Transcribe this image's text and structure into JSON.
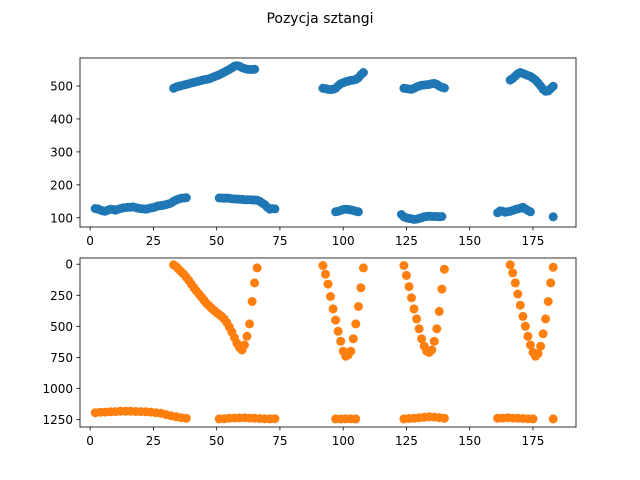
{
  "figure": {
    "title": "Pozycja sztangi"
  },
  "chart_data": [
    {
      "type": "scatter",
      "title": "Pozycja sztangi",
      "xlabel": "",
      "ylabel": "",
      "xlim": [
        -4,
        192
      ],
      "ylim": [
        72,
        585
      ],
      "xticks": [
        0,
        25,
        50,
        75,
        100,
        125,
        150,
        175
      ],
      "yticks": [
        100,
        200,
        300,
        400,
        500
      ],
      "grid": false,
      "color": "#1f77b4",
      "points": [
        [
          2,
          128
        ],
        [
          3,
          127
        ],
        [
          4,
          124
        ],
        [
          5,
          121
        ],
        [
          6,
          120
        ],
        [
          7,
          123
        ],
        [
          8,
          126
        ],
        [
          9,
          125
        ],
        [
          10,
          123
        ],
        [
          11,
          126
        ],
        [
          12,
          128
        ],
        [
          13,
          130
        ],
        [
          14,
          131
        ],
        [
          15,
          132
        ],
        [
          16,
          132
        ],
        [
          17,
          133
        ],
        [
          18,
          131
        ],
        [
          19,
          129
        ],
        [
          20,
          128
        ],
        [
          21,
          127
        ],
        [
          22,
          126
        ],
        [
          23,
          128
        ],
        [
          24,
          130
        ],
        [
          25,
          131
        ],
        [
          26,
          134
        ],
        [
          27,
          136
        ],
        [
          28,
          137
        ],
        [
          29,
          138
        ],
        [
          30,
          140
        ],
        [
          31,
          142
        ],
        [
          32,
          145
        ],
        [
          33,
          150
        ],
        [
          34,
          154
        ],
        [
          35,
          157
        ],
        [
          36,
          159
        ],
        [
          37,
          160
        ],
        [
          38,
          161
        ],
        [
          33,
          493
        ],
        [
          34,
          497
        ],
        [
          35,
          499
        ],
        [
          36,
          501
        ],
        [
          37,
          503
        ],
        [
          38,
          505
        ],
        [
          39,
          507
        ],
        [
          40,
          509
        ],
        [
          41,
          511
        ],
        [
          42,
          513
        ],
        [
          43,
          515
        ],
        [
          44,
          517
        ],
        [
          45,
          519
        ],
        [
          46,
          520
        ],
        [
          47,
          522
        ],
        [
          48,
          525
        ],
        [
          49,
          528
        ],
        [
          50,
          531
        ],
        [
          51,
          534
        ],
        [
          52,
          538
        ],
        [
          53,
          542
        ],
        [
          54,
          546
        ],
        [
          55,
          550
        ],
        [
          56,
          555
        ],
        [
          57,
          560
        ],
        [
          58,
          562
        ],
        [
          59,
          560
        ],
        [
          60,
          556
        ],
        [
          61,
          553
        ],
        [
          62,
          551
        ],
        [
          63,
          550
        ],
        [
          64,
          550
        ],
        [
          65,
          551
        ],
        [
          51,
          160
        ],
        [
          52,
          160
        ],
        [
          53,
          159
        ],
        [
          54,
          160
        ],
        [
          55,
          159
        ],
        [
          56,
          158
        ],
        [
          57,
          157
        ],
        [
          58,
          157
        ],
        [
          59,
          156
        ],
        [
          60,
          156
        ],
        [
          61,
          155
        ],
        [
          62,
          155
        ],
        [
          63,
          155
        ],
        [
          64,
          154
        ],
        [
          65,
          154
        ],
        [
          66,
          153
        ],
        [
          67,
          150
        ],
        [
          68,
          145
        ],
        [
          69,
          140
        ],
        [
          70,
          132
        ],
        [
          71,
          126
        ],
        [
          72,
          128
        ],
        [
          73,
          127
        ],
        [
          92,
          493
        ],
        [
          93,
          492
        ],
        [
          94,
          490
        ],
        [
          95,
          489
        ],
        [
          96,
          490
        ],
        [
          97,
          493
        ],
        [
          98,
          500
        ],
        [
          99,
          507
        ],
        [
          100,
          510
        ],
        [
          101,
          513
        ],
        [
          102,
          515
        ],
        [
          103,
          517
        ],
        [
          104,
          518
        ],
        [
          105,
          520
        ],
        [
          106,
          525
        ],
        [
          107,
          534
        ],
        [
          108,
          541
        ],
        [
          97,
          118
        ],
        [
          98,
          120
        ],
        [
          99,
          122
        ],
        [
          100,
          125
        ],
        [
          101,
          126
        ],
        [
          102,
          125
        ],
        [
          103,
          124
        ],
        [
          104,
          122
        ],
        [
          105,
          120
        ],
        [
          106,
          118
        ],
        [
          123,
          110
        ],
        [
          124,
          103
        ],
        [
          125,
          100
        ],
        [
          126,
          98
        ],
        [
          127,
          97
        ],
        [
          128,
          95
        ],
        [
          129,
          96
        ],
        [
          130,
          98
        ],
        [
          131,
          100
        ],
        [
          132,
          103
        ],
        [
          133,
          104
        ],
        [
          134,
          105
        ],
        [
          135,
          104
        ],
        [
          136,
          104
        ],
        [
          137,
          104
        ],
        [
          138,
          103
        ],
        [
          139,
          104
        ],
        [
          124,
          493
        ],
        [
          125,
          492
        ],
        [
          126,
          491
        ],
        [
          127,
          490
        ],
        [
          128,
          493
        ],
        [
          129,
          497
        ],
        [
          130,
          500
        ],
        [
          131,
          502
        ],
        [
          132,
          503
        ],
        [
          133,
          504
        ],
        [
          134,
          505
        ],
        [
          135,
          507
        ],
        [
          136,
          508
        ],
        [
          137,
          505
        ],
        [
          138,
          500
        ],
        [
          139,
          496
        ],
        [
          140,
          494
        ],
        [
          161,
          115
        ],
        [
          162,
          121
        ],
        [
          163,
          120
        ],
        [
          164,
          117
        ],
        [
          165,
          118
        ],
        [
          166,
          120
        ],
        [
          167,
          122
        ],
        [
          168,
          125
        ],
        [
          169,
          127
        ],
        [
          170,
          129
        ],
        [
          171,
          132
        ],
        [
          172,
          127
        ],
        [
          173,
          122
        ],
        [
          174,
          118
        ],
        [
          166,
          518
        ],
        [
          167,
          523
        ],
        [
          168,
          530
        ],
        [
          169,
          537
        ],
        [
          170,
          541
        ],
        [
          171,
          538
        ],
        [
          172,
          535
        ],
        [
          173,
          532
        ],
        [
          174,
          529
        ],
        [
          175,
          524
        ],
        [
          176,
          518
        ],
        [
          177,
          510
        ],
        [
          178,
          500
        ],
        [
          179,
          490
        ],
        [
          180,
          484
        ],
        [
          181,
          485
        ],
        [
          182,
          492
        ],
        [
          183,
          499
        ],
        [
          183,
          103
        ]
      ]
    },
    {
      "type": "scatter",
      "title": "",
      "xlabel": "",
      "ylabel": "",
      "xlim": [
        -4,
        192
      ],
      "ylim": [
        1310,
        -50
      ],
      "y_inverted": true,
      "xticks": [
        0,
        25,
        50,
        75,
        100,
        125,
        150,
        175
      ],
      "yticks": [
        0,
        250,
        500,
        750,
        1000,
        1250
      ],
      "grid": false,
      "color": "#ff7f0e",
      "points": [
        [
          2,
          1195
        ],
        [
          4,
          1192
        ],
        [
          6,
          1190
        ],
        [
          8,
          1188
        ],
        [
          10,
          1186
        ],
        [
          12,
          1184
        ],
        [
          14,
          1183
        ],
        [
          16,
          1184
        ],
        [
          18,
          1185
        ],
        [
          20,
          1186
        ],
        [
          22,
          1188
        ],
        [
          24,
          1190
        ],
        [
          26,
          1195
        ],
        [
          28,
          1200
        ],
        [
          30,
          1210
        ],
        [
          32,
          1220
        ],
        [
          34,
          1228
        ],
        [
          36,
          1235
        ],
        [
          38,
          1240
        ],
        [
          33,
          5
        ],
        [
          34,
          20
        ],
        [
          35,
          40
        ],
        [
          36,
          60
        ],
        [
          37,
          80
        ],
        [
          38,
          105
        ],
        [
          39,
          130
        ],
        [
          40,
          160
        ],
        [
          41,
          190
        ],
        [
          42,
          215
        ],
        [
          43,
          240
        ],
        [
          44,
          265
        ],
        [
          45,
          290
        ],
        [
          46,
          315
        ],
        [
          47,
          335
        ],
        [
          48,
          355
        ],
        [
          49,
          372
        ],
        [
          50,
          390
        ],
        [
          51,
          405
        ],
        [
          52,
          420
        ],
        [
          53,
          440
        ],
        [
          54,
          470
        ],
        [
          55,
          505
        ],
        [
          56,
          545
        ],
        [
          57,
          590
        ],
        [
          58,
          635
        ],
        [
          59,
          670
        ],
        [
          60,
          690
        ],
        [
          61,
          650
        ],
        [
          62,
          580
        ],
        [
          63,
          480
        ],
        [
          64,
          300
        ],
        [
          65,
          150
        ],
        [
          66,
          30
        ],
        [
          51,
          1245
        ],
        [
          53,
          1243
        ],
        [
          55,
          1240
        ],
        [
          57,
          1238
        ],
        [
          59,
          1237
        ],
        [
          61,
          1236
        ],
        [
          63,
          1238
        ],
        [
          65,
          1240
        ],
        [
          67,
          1242
        ],
        [
          69,
          1244
        ],
        [
          71,
          1245
        ],
        [
          73,
          1243
        ],
        [
          92,
          10
        ],
        [
          93,
          80
        ],
        [
          94,
          160
        ],
        [
          95,
          260
        ],
        [
          96,
          360
        ],
        [
          97,
          450
        ],
        [
          98,
          540
        ],
        [
          99,
          620
        ],
        [
          100,
          700
        ],
        [
          101,
          740
        ],
        [
          102,
          730
        ],
        [
          103,
          700
        ],
        [
          104,
          600
        ],
        [
          105,
          480
        ],
        [
          106,
          340
        ],
        [
          107,
          190
        ],
        [
          108,
          30
        ],
        [
          97,
          1245
        ],
        [
          99,
          1246
        ],
        [
          101,
          1245
        ],
        [
          103,
          1244
        ],
        [
          105,
          1246
        ],
        [
          124,
          10
        ],
        [
          125,
          90
        ],
        [
          126,
          180
        ],
        [
          127,
          270
        ],
        [
          128,
          360
        ],
        [
          129,
          440
        ],
        [
          130,
          520
        ],
        [
          131,
          600
        ],
        [
          132,
          660
        ],
        [
          133,
          700
        ],
        [
          134,
          710
        ],
        [
          135,
          690
        ],
        [
          136,
          620
        ],
        [
          137,
          520
        ],
        [
          138,
          380
        ],
        [
          139,
          200
        ],
        [
          140,
          40
        ],
        [
          124,
          1245
        ],
        [
          126,
          1242
        ],
        [
          128,
          1240
        ],
        [
          130,
          1236
        ],
        [
          132,
          1232
        ],
        [
          134,
          1228
        ],
        [
          136,
          1230
        ],
        [
          138,
          1234
        ],
        [
          140,
          1240
        ],
        [
          166,
          5
        ],
        [
          167,
          70
        ],
        [
          168,
          150
        ],
        [
          169,
          240
        ],
        [
          170,
          330
        ],
        [
          171,
          420
        ],
        [
          172,
          500
        ],
        [
          173,
          580
        ],
        [
          174,
          650
        ],
        [
          175,
          710
        ],
        [
          176,
          740
        ],
        [
          177,
          720
        ],
        [
          178,
          660
        ],
        [
          179,
          560
        ],
        [
          180,
          440
        ],
        [
          181,
          300
        ],
        [
          182,
          150
        ],
        [
          183,
          25
        ],
        [
          161,
          1240
        ],
        [
          163,
          1238
        ],
        [
          165,
          1236
        ],
        [
          167,
          1238
        ],
        [
          169,
          1240
        ],
        [
          171,
          1242
        ],
        [
          173,
          1244
        ],
        [
          175,
          1245
        ],
        [
          183,
          1245
        ]
      ]
    }
  ]
}
